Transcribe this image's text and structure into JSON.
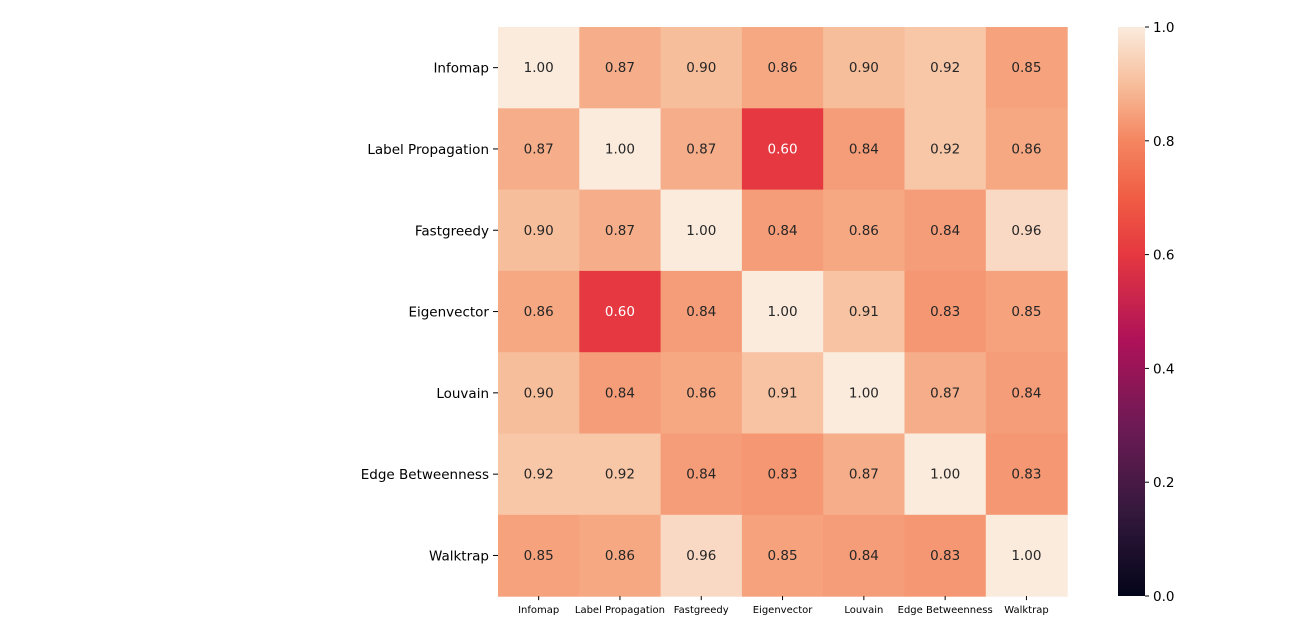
{
  "chart_data": {
    "type": "heatmap",
    "title": "",
    "xlabel": "",
    "ylabel": "",
    "row_labels": [
      "Infomap",
      "Label Propagation",
      "Fastgreedy",
      "Eigenvector",
      "Louvain",
      "Edge Betweenness",
      "Walktrap"
    ],
    "col_labels": [
      "Infomap",
      "Label Propagation",
      "Fastgreedy",
      "Eigenvector",
      "Louvain",
      "Edge Betweenness",
      "Walktrap"
    ],
    "values": [
      [
        1.0,
        0.87,
        0.9,
        0.86,
        0.9,
        0.92,
        0.85
      ],
      [
        0.87,
        1.0,
        0.87,
        0.6,
        0.84,
        0.92,
        0.86
      ],
      [
        0.9,
        0.87,
        1.0,
        0.84,
        0.86,
        0.84,
        0.96
      ],
      [
        0.86,
        0.6,
        0.84,
        1.0,
        0.91,
        0.83,
        0.85
      ],
      [
        0.9,
        0.84,
        0.86,
        0.91,
        1.0,
        0.87,
        0.84
      ],
      [
        0.92,
        0.92,
        0.84,
        0.83,
        0.87,
        1.0,
        0.83
      ],
      [
        0.85,
        0.86,
        0.96,
        0.85,
        0.84,
        0.83,
        1.0
      ]
    ],
    "value_format": "0.00",
    "colorscale": "rocket",
    "vmin": 0.0,
    "vmax": 1.0,
    "colorbar": {
      "ticks": [
        0.0,
        0.2,
        0.4,
        0.6,
        0.8,
        1.0
      ],
      "tick_labels": [
        "0.0",
        "0.2",
        "0.4",
        "0.6",
        "0.8",
        "1.0"
      ]
    },
    "annotations_shown": true,
    "grid": false
  }
}
